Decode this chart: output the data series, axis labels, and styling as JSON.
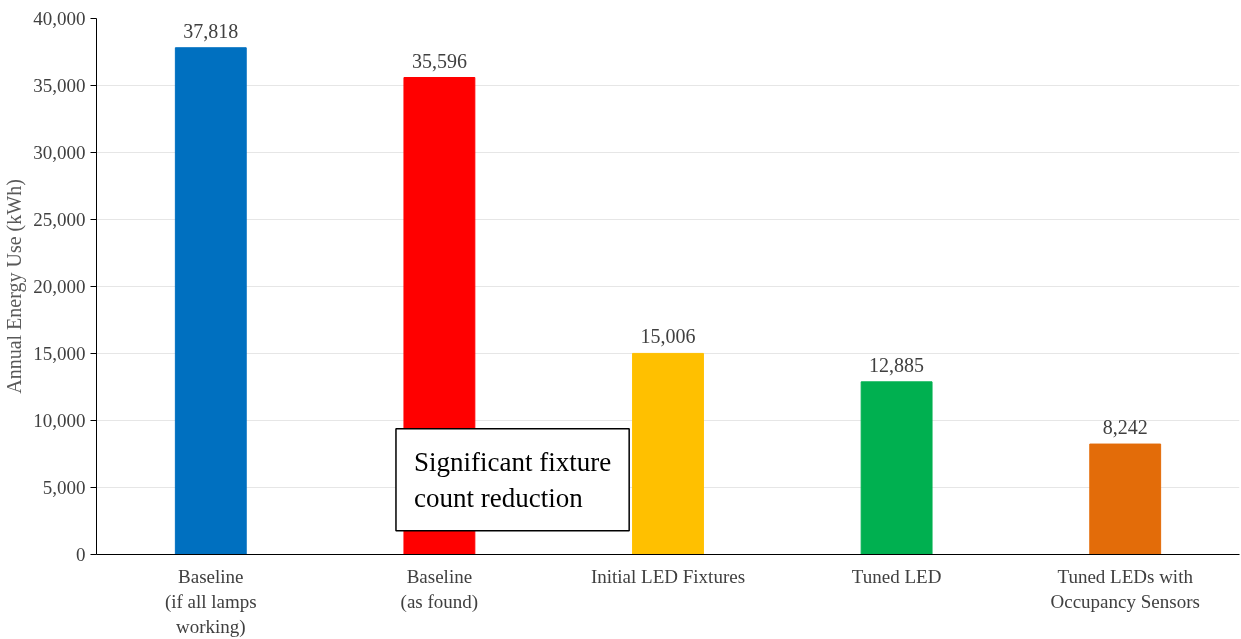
{
  "chart_data": {
    "type": "bar",
    "ylabel": "Annual Energy Use (kWh)",
    "categories": [
      "Baseline\n(if all lamps\nworking)",
      "Baseline\n(as found)",
      "Initial LED Fixtures",
      "Tuned LED",
      "Tuned LEDs with\nOccupancy Sensors"
    ],
    "values": [
      37818,
      35596,
      15006,
      12885,
      8242
    ],
    "colors": [
      "#0070c0",
      "#ff0000",
      "#ffc000",
      "#00b050",
      "#e36c09"
    ],
    "ylim": [
      0,
      40000
    ],
    "yticks": [
      {
        "value": 0,
        "label": "0"
      },
      {
        "value": 5000,
        "label": "5,000"
      },
      {
        "value": 10000,
        "label": "10,000"
      },
      {
        "value": 15000,
        "label": "15,000"
      },
      {
        "value": 20000,
        "label": "20,000"
      },
      {
        "value": 25000,
        "label": "25,000"
      },
      {
        "value": 30000,
        "label": "30,000"
      },
      {
        "value": 35000,
        "label": "35,000"
      },
      {
        "value": 40000,
        "label": "40,000"
      }
    ],
    "grid": "y",
    "value_labels": [
      "37,818",
      "35,596",
      "15,006",
      "12,885",
      "8,242"
    ],
    "annotations": [
      "Significant fixture\ncount reduction"
    ]
  }
}
